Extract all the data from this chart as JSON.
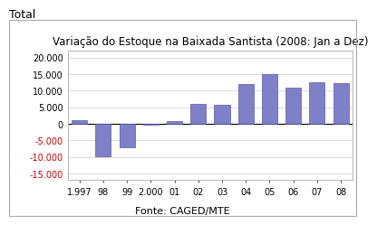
{
  "title": "Variação do Estoque na Baixada Santista (2008: Jan a Dez)",
  "super_title": "Total",
  "categories": [
    "1.997",
    "98",
    "99",
    "2.000",
    "01",
    "02",
    "03",
    "04",
    "05",
    "06",
    "07",
    "08"
  ],
  "values": [
    1200,
    -9800,
    -7200,
    -150,
    900,
    6000,
    5800,
    12000,
    15000,
    11000,
    12500,
    12200
  ],
  "bar_color": "#8080c8",
  "bar_edge_color": "#5858a8",
  "ylim": [
    -17000,
    22000
  ],
  "yticks": [
    -15000,
    -10000,
    -5000,
    0,
    5000,
    10000,
    15000,
    20000
  ],
  "ytick_labels": [
    "-15.000",
    "-10.000",
    "-5.000",
    "0",
    "5.000",
    "10.000",
    "15.000",
    "20.000"
  ],
  "negative_ytick_color": "#cc0000",
  "positive_ytick_color": "#000000",
  "source_text": "Fonte: CAGED/MTE",
  "background_color": "#ffffff",
  "plot_bg_color": "#ffffff",
  "grid_color": "#cccccc",
  "border_color": "#aaaaaa",
  "title_fontsize": 8.5,
  "tick_fontsize": 7,
  "source_fontsize": 8
}
